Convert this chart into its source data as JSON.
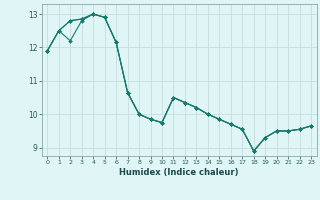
{
  "xlabel": "Humidex (Indice chaleur)",
  "bg_color": "#e0f5f5",
  "grid_color": "#c8dede",
  "line_color": "#1a7a6e",
  "xlim": [
    -0.5,
    23.5
  ],
  "ylim": [
    8.75,
    13.3
  ],
  "yticks": [
    9,
    10,
    11,
    12,
    13
  ],
  "xticks": [
    0,
    1,
    2,
    3,
    4,
    5,
    6,
    7,
    8,
    9,
    10,
    11,
    12,
    13,
    14,
    15,
    16,
    17,
    18,
    19,
    20,
    21,
    22,
    23
  ],
  "line1_x": [
    0,
    1,
    2,
    3,
    4,
    5,
    6,
    7,
    8,
    9,
    10,
    11,
    12,
    13,
    14,
    15,
    16,
    17,
    18,
    19,
    20,
    21,
    22,
    23
  ],
  "line1_y": [
    11.9,
    12.5,
    12.8,
    12.85,
    13.0,
    12.9,
    12.15,
    10.65,
    10.0,
    9.85,
    9.75,
    10.5,
    10.35,
    10.2,
    10.0,
    9.85,
    9.7,
    9.55,
    8.9,
    9.3,
    9.5,
    9.5,
    9.55,
    9.65
  ],
  "line2_x": [
    0,
    1,
    2,
    3,
    4,
    5,
    6,
    7,
    8,
    9,
    10,
    11,
    12,
    13,
    14,
    15,
    16,
    17,
    18,
    19,
    20,
    21,
    22,
    23
  ],
  "line2_y": [
    11.9,
    12.5,
    12.8,
    12.85,
    13.0,
    12.9,
    12.15,
    10.65,
    10.0,
    9.85,
    9.75,
    10.5,
    10.35,
    10.2,
    10.0,
    9.85,
    9.7,
    9.55,
    8.9,
    9.3,
    9.5,
    9.5,
    9.55,
    9.65
  ],
  "line3_x": [
    0,
    1,
    2,
    3,
    4,
    5,
    6,
    7,
    8,
    9,
    10,
    11,
    12,
    13,
    14,
    15,
    16,
    17,
    18,
    19,
    20,
    21,
    22,
    23
  ],
  "line3_y": [
    11.9,
    12.5,
    12.2,
    12.8,
    13.0,
    12.9,
    12.15,
    10.65,
    10.0,
    9.85,
    9.75,
    10.5,
    10.35,
    10.2,
    10.0,
    9.85,
    9.7,
    9.55,
    8.9,
    9.3,
    9.5,
    9.5,
    9.55,
    9.65
  ]
}
